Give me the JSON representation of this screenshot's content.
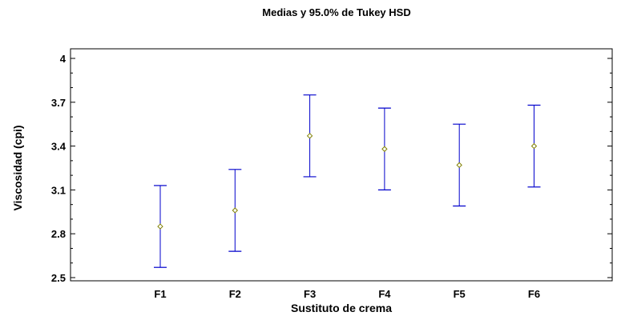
{
  "chart_data": {
    "type": "scatter",
    "subtype": "means-with-intervals",
    "title": "Medias y 95.0% de Tukey HSD",
    "xlabel": "Sustituto de crema",
    "ylabel": "Viscosidad (cpi)",
    "categories": [
      "F1",
      "F2",
      "F3",
      "F4",
      "F5",
      "F6"
    ],
    "means": [
      2.85,
      2.96,
      3.47,
      3.38,
      3.27,
      3.4
    ],
    "lower": [
      2.57,
      2.68,
      3.19,
      3.1,
      2.99,
      3.12
    ],
    "upper": [
      3.13,
      3.24,
      3.75,
      3.66,
      3.55,
      3.68
    ],
    "ylim": [
      2.5,
      4.0
    ],
    "yticks": [
      2.5,
      2.8,
      3.1,
      3.4,
      3.7,
      4.0
    ],
    "ytick_labels": [
      "2.5",
      "2.8",
      "3.1",
      "3.4",
      "3.7",
      "4"
    ],
    "interval_color": "#0000cc",
    "marker_color": "#808000",
    "grid": false
  }
}
